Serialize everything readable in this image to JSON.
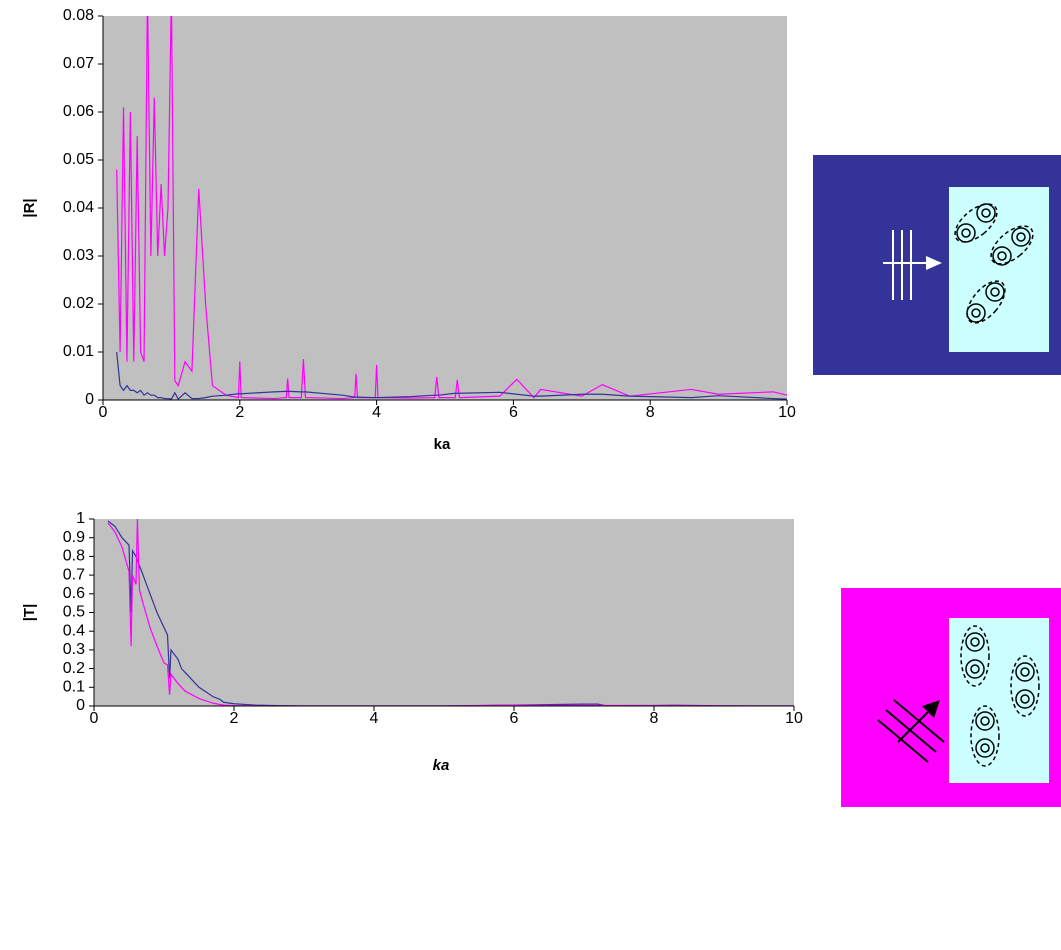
{
  "chart_data": [
    {
      "type": "line",
      "y_label": "|R|",
      "x_label": "ka",
      "xlim": [
        0,
        10
      ],
      "xticks": [
        0,
        2,
        4,
        6,
        8,
        10
      ],
      "ylim": [
        0,
        0.08
      ],
      "yticks": [
        0,
        0.01,
        0.02,
        0.03,
        0.04,
        0.05,
        0.06,
        0.07,
        0.08
      ],
      "x": [
        0.2,
        0.25,
        0.3,
        0.35,
        0.4,
        0.45,
        0.5,
        0.55,
        0.6,
        0.65,
        0.7,
        0.75,
        0.8,
        0.85,
        0.9,
        0.95,
        1.0,
        1.05,
        1.1,
        1.2,
        1.3,
        1.4,
        1.5,
        1.6,
        1.8,
        1.98,
        2.0,
        2.02,
        2.5,
        2.68,
        2.7,
        2.72,
        2.9,
        2.93,
        2.96,
        3.5,
        3.68,
        3.7,
        3.72,
        3.98,
        4.0,
        4.02,
        4.5,
        4.85,
        4.88,
        4.91,
        5.15,
        5.18,
        5.21,
        5.8,
        6.05,
        6.3,
        6.4,
        7.0,
        7.3,
        7.7,
        8.6,
        9.0,
        9.8,
        10.0
      ],
      "series": [
        {
          "color": "#ff00ff",
          "values": [
            0.048,
            0.01,
            0.061,
            0.008,
            0.06,
            0.008,
            0.055,
            0.01,
            0.008,
            0.085,
            0.03,
            0.063,
            0.03,
            0.045,
            0.03,
            0.04,
            0.085,
            0.004,
            0.003,
            0.008,
            0.006,
            0.044,
            0.02,
            0.003,
            0.001,
            0.0005,
            0.008,
            0.0005,
            0.0003,
            0.0005,
            0.0045,
            0.0005,
            0.0005,
            0.0085,
            0.0005,
            0.0003,
            0.0005,
            0.0055,
            0.0005,
            0.0005,
            0.0073,
            0.0005,
            0.0004,
            0.0005,
            0.0048,
            0.0005,
            0.0005,
            0.0042,
            0.0005,
            0.0008,
            0.0043,
            0.0005,
            0.0022,
            0.0008,
            0.0032,
            0.0008,
            0.0022,
            0.0012,
            0.0017,
            0.001
          ]
        },
        {
          "color": "#333399",
          "values": [
            0.01,
            0.003,
            0.002,
            0.003,
            0.002,
            0.002,
            0.0015,
            0.002,
            0.001,
            0.0015,
            0.001,
            0.001,
            0.0005,
            0.0005,
            0.0003,
            0.0003,
            0.0002,
            0.0015,
            0.0002,
            0.0015,
            0.0003,
            0.0003,
            0.0005,
            0.0008,
            0.001,
            0.0013,
            0.0013,
            0.0013,
            0.0017,
            0.0018,
            0.0018,
            0.0018,
            0.0017,
            0.0017,
            0.0017,
            0.001,
            0.0006,
            0.0006,
            0.0006,
            0.0005,
            0.0005,
            0.0005,
            0.0007,
            0.001,
            0.001,
            0.001,
            0.0014,
            0.0014,
            0.0014,
            0.0016,
            0.0012,
            0.0008,
            0.0008,
            0.0012,
            0.0012,
            0.0008,
            0.0005,
            0.0009,
            0.0003,
            0.0002
          ]
        }
      ]
    },
    {
      "type": "line",
      "y_label": "|T|",
      "x_label": "ka",
      "xlim": [
        0,
        10
      ],
      "xticks": [
        0,
        2,
        4,
        6,
        8,
        10
      ],
      "ylim": [
        0,
        1
      ],
      "yticks": [
        0,
        0.1,
        0.2,
        0.3,
        0.4,
        0.5,
        0.6,
        0.7,
        0.8,
        0.9,
        1
      ],
      "x": [
        0.2,
        0.3,
        0.4,
        0.5,
        0.53,
        0.55,
        0.6,
        0.62,
        0.65,
        0.7,
        0.8,
        0.9,
        1.0,
        1.05,
        1.08,
        1.1,
        1.2,
        1.25,
        1.3,
        1.5,
        1.7,
        1.8,
        1.85,
        2.0,
        2.3,
        2.6,
        3,
        4,
        5,
        6,
        6.3,
        6.6,
        7,
        7.2,
        7.3,
        8,
        8.3,
        9,
        10
      ],
      "series": [
        {
          "color": "#333399",
          "values": [
            0.99,
            0.96,
            0.9,
            0.86,
            0.5,
            0.83,
            0.8,
            0.78,
            0.75,
            0.7,
            0.6,
            0.5,
            0.42,
            0.38,
            0.15,
            0.3,
            0.25,
            0.2,
            0.18,
            0.1,
            0.05,
            0.035,
            0.02,
            0.012,
            0.005,
            0.002,
            0,
            0,
            0,
            0.005,
            0.006,
            0.008,
            0.01,
            0.01,
            0.002,
            0.003,
            0.004,
            0.001,
            0
          ]
        },
        {
          "color": "#ff00ff",
          "values": [
            0.98,
            0.93,
            0.85,
            0.72,
            0.32,
            0.7,
            0.65,
            1.0,
            0.62,
            0.55,
            0.42,
            0.32,
            0.23,
            0.22,
            0.06,
            0.17,
            0.12,
            0.1,
            0.08,
            0.04,
            0.015,
            0.008,
            0.005,
            0.002,
            0.001,
            0,
            0,
            0,
            0,
            0.004,
            0.003,
            0.003,
            0.003,
            0.003,
            0.003,
            0.002,
            0.002,
            0.001,
            0
          ]
        }
      ]
    }
  ]
}
